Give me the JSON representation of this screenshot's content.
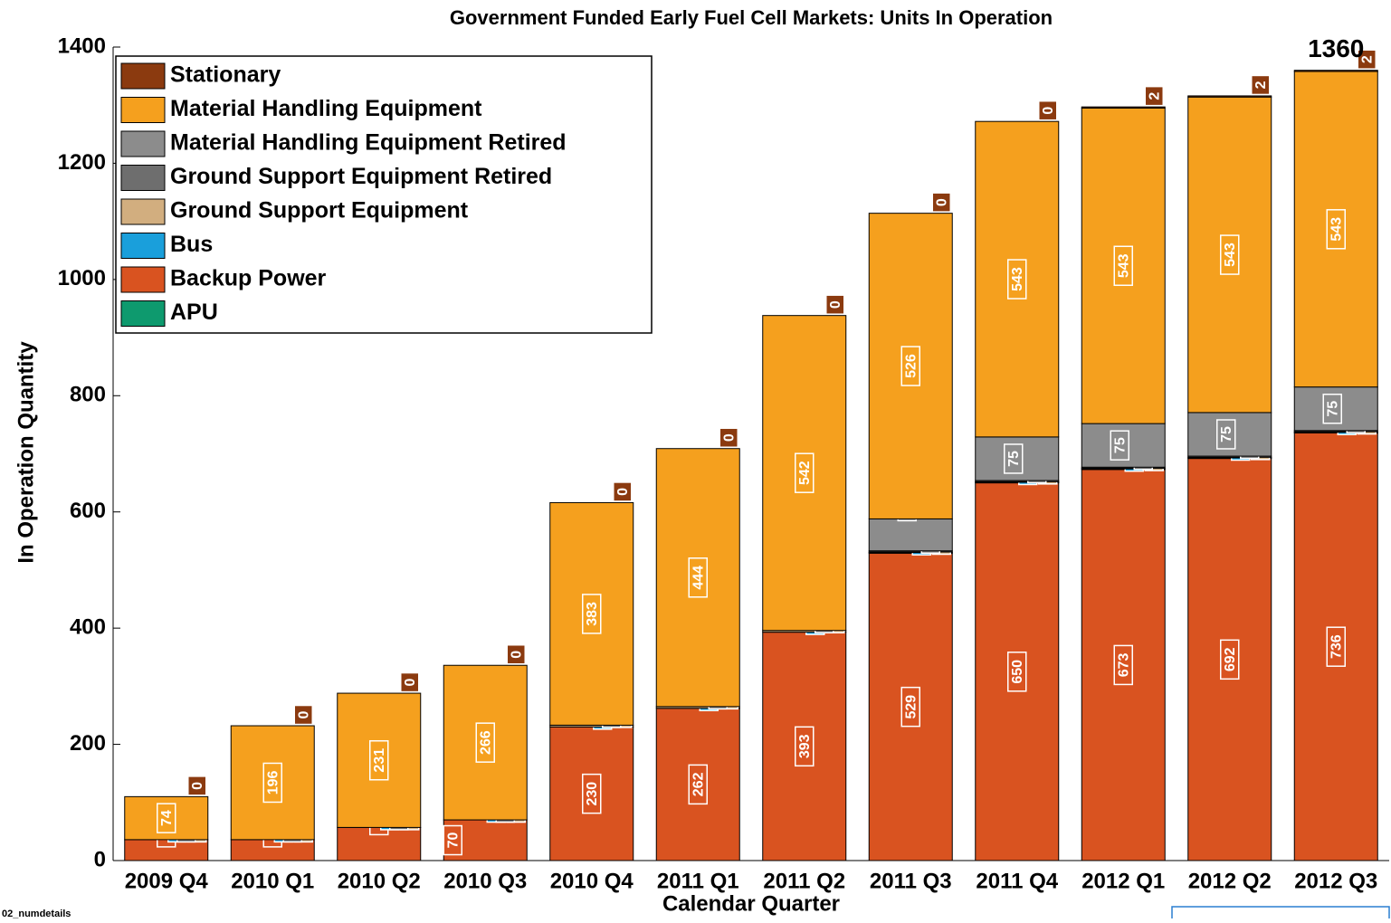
{
  "chart_data": {
    "type": "stacked_bar",
    "title": "Government Funded Early Fuel Cell Markets:  Units In Operation",
    "x_label": "Calendar Quarter",
    "y_label": "In Operation Quantity",
    "categories": [
      "2009 Q4",
      "2010 Q1",
      "2010 Q2",
      "2010 Q3",
      "2010 Q4",
      "2011 Q1",
      "2011 Q2",
      "2011 Q3",
      "2011 Q4",
      "2012 Q1",
      "2012 Q2",
      "2012 Q3"
    ],
    "series": [
      {
        "name": "APU",
        "color": "#0e9a6e",
        "values": [
          0,
          0,
          0,
          0,
          0,
          0,
          0,
          0,
          0,
          0,
          0,
          0
        ]
      },
      {
        "name": "Backup Power",
        "color": "#d95320",
        "values": [
          36,
          36,
          57,
          70,
          230,
          262,
          393,
          529,
          650,
          673,
          692,
          736
        ]
      },
      {
        "name": "Bus",
        "color": "#1a9fdb",
        "values": [
          0,
          0,
          0,
          0,
          0,
          0,
          0,
          1,
          1,
          1,
          1,
          1
        ]
      },
      {
        "name": "Ground Support Equipment",
        "color": "#d2ae7f",
        "values": [
          0,
          0,
          0,
          0,
          3,
          3,
          3,
          1,
          1,
          1,
          1,
          1
        ]
      },
      {
        "name": "Ground Support Equipment Retired",
        "color": "#6e6e6e",
        "values": [
          0,
          0,
          0,
          0,
          0,
          0,
          0,
          2,
          2,
          2,
          2,
          2
        ]
      },
      {
        "name": "Material Handling Equipment Retired",
        "color": "#8c8c8c",
        "values": [
          0,
          0,
          0,
          0,
          0,
          0,
          0,
          55,
          75,
          75,
          75,
          75
        ]
      },
      {
        "name": "Material Handling Equipment",
        "color": "#f5a01e",
        "values": [
          74,
          196,
          231,
          266,
          383,
          444,
          542,
          526,
          543,
          543,
          543,
          543
        ]
      },
      {
        "name": "Stationary",
        "color": "#8b3a0f",
        "values": [
          0,
          0,
          0,
          0,
          0,
          0,
          0,
          0,
          0,
          2,
          2,
          2
        ]
      }
    ],
    "annotations": [
      {
        "text": "1360"
      }
    ],
    "footer": "02_numdetails",
    "ylim": [
      0,
      1400
    ],
    "yticks": [
      0,
      200,
      400,
      600,
      800,
      1000,
      1200,
      1400
    ]
  }
}
